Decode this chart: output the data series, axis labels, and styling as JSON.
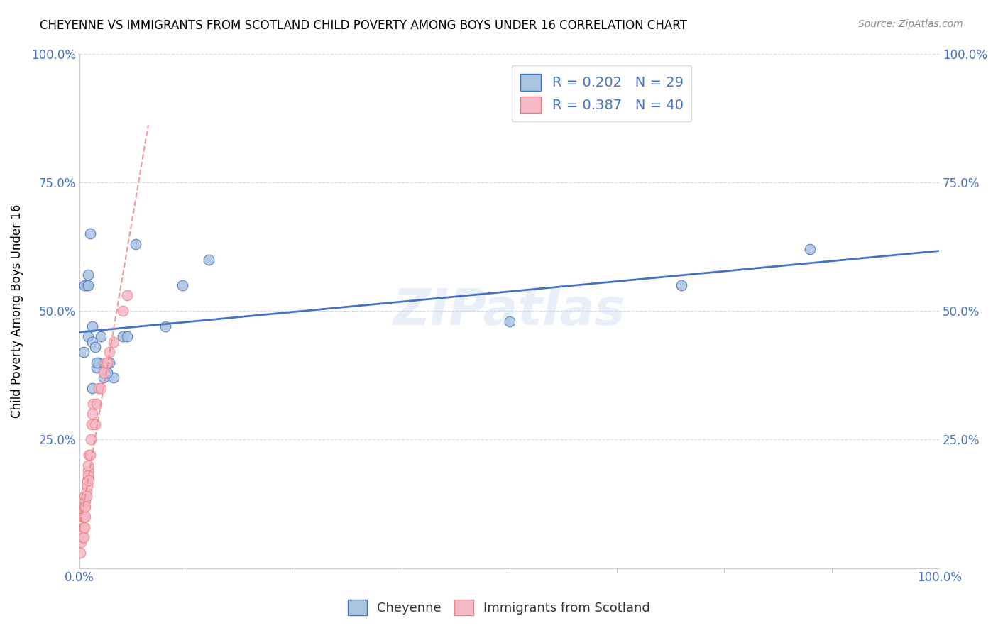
{
  "title": "CHEYENNE VS IMMIGRANTS FROM SCOTLAND CHILD POVERTY AMONG BOYS UNDER 16 CORRELATION CHART",
  "source": "Source: ZipAtlas.com",
  "ylabel": "Child Poverty Among Boys Under 16",
  "xlabel": "",
  "background_color": "#ffffff",
  "watermark": "ZIPatlas",
  "cheyenne_color": "#a8c4e0",
  "cheyenne_color_line": "#4472c4",
  "scotland_color": "#f4b8c8",
  "scotland_color_line": "#f08080",
  "R_cheyenne": 0.202,
  "N_cheyenne": 29,
  "R_scotland": 0.387,
  "N_scotland": 40,
  "cheyenne_x": [
    0.5,
    1.0,
    1.0,
    1.5,
    1.5,
    1.8,
    2.0,
    2.2,
    2.5,
    3.0,
    3.5,
    4.0,
    5.0,
    5.5,
    6.5,
    10.0,
    12.0,
    15.0,
    50.0,
    70.0,
    85.0,
    2.8,
    3.2,
    2.0,
    1.2,
    0.8,
    0.6,
    1.0,
    1.5
  ],
  "cheyenne_y": [
    42.0,
    57.0,
    45.0,
    44.0,
    47.0,
    43.0,
    39.0,
    40.0,
    45.0,
    38.0,
    40.0,
    37.0,
    45.0,
    45.0,
    63.0,
    47.0,
    55.0,
    60.0,
    48.0,
    55.0,
    62.0,
    37.0,
    38.0,
    40.0,
    65.0,
    55.0,
    55.0,
    55.0,
    35.0
  ],
  "scotland_x": [
    0.1,
    0.2,
    0.3,
    0.3,
    0.4,
    0.4,
    0.5,
    0.5,
    0.5,
    0.6,
    0.6,
    0.6,
    0.7,
    0.7,
    0.7,
    0.8,
    0.8,
    0.9,
    0.9,
    1.0,
    1.0,
    1.0,
    1.1,
    1.1,
    1.2,
    1.3,
    1.4,
    1.5,
    1.6,
    1.8,
    2.0,
    2.2,
    2.5,
    2.8,
    3.0,
    3.2,
    3.5,
    4.0,
    5.0,
    5.5
  ],
  "scotland_y": [
    3.0,
    5.0,
    6.0,
    7.0,
    10.0,
    12.0,
    6.0,
    8.0,
    10.0,
    12.0,
    14.0,
    8.0,
    10.0,
    13.0,
    12.0,
    15.0,
    14.0,
    17.0,
    16.0,
    19.0,
    18.0,
    20.0,
    17.0,
    22.0,
    22.0,
    25.0,
    28.0,
    30.0,
    32.0,
    28.0,
    32.0,
    35.0,
    35.0,
    38.0,
    40.0,
    40.0,
    42.0,
    44.0,
    50.0,
    53.0
  ],
  "xlim": [
    0.0,
    100.0
  ],
  "ylim": [
    0.0,
    100.0
  ],
  "xtick_positions": [
    0.0,
    100.0
  ],
  "xtick_labels": [
    "0.0%",
    "100.0%"
  ],
  "xtick_minor_positions": [
    12.5,
    25.0,
    37.5,
    50.0,
    62.5,
    75.0,
    87.5
  ],
  "ytick_positions": [
    0.0,
    25.0,
    50.0,
    75.0,
    100.0
  ],
  "ytick_labels_left": [
    "",
    "25.0%",
    "50.0%",
    "75.0%",
    "100.0%"
  ],
  "ytick_labels_right": [
    "",
    "25.0%",
    "50.0%",
    "75.0%",
    "100.0%"
  ],
  "grid_color": "#d0d8e8",
  "title_color": "#000000",
  "axis_tick_color": "#4472c4",
  "legend_R_color": "#4472c4",
  "legend_fontsize": 14,
  "title_fontsize": 12,
  "marker_size": 110
}
